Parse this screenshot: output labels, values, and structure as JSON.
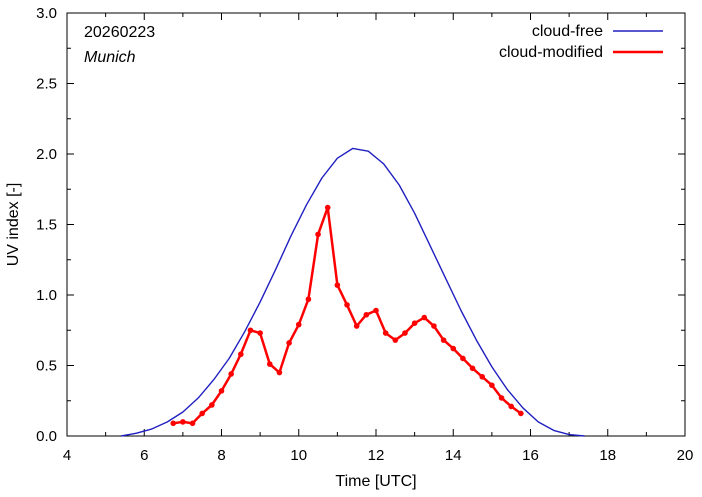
{
  "chart_data": {
    "type": "line",
    "xlabel": "Time  [UTC]",
    "ylabel": "UV index  [-]",
    "xlim": [
      4,
      20
    ],
    "ylim": [
      0,
      3.0
    ],
    "xticks": [
      4,
      6,
      8,
      10,
      12,
      14,
      16,
      18,
      20
    ],
    "yticks": [
      0.0,
      0.5,
      1.0,
      1.5,
      2.0,
      2.5,
      3.0
    ],
    "xtick_labels": [
      "4",
      "6",
      "8",
      "10",
      "12",
      "14",
      "16",
      "18",
      "20"
    ],
    "ytick_labels": [
      "0.0",
      "0.5",
      "1.0",
      "1.5",
      "2.0",
      "2.5",
      "3.0"
    ],
    "grid": false,
    "legend_position": "top-right",
    "annotations": {
      "date": "20260223",
      "location": "Munich"
    },
    "series": [
      {
        "name": "cloud-free",
        "color": "#2020c0",
        "marker": false,
        "x": [
          5.4,
          5.8,
          6.2,
          6.6,
          7.0,
          7.4,
          7.8,
          8.2,
          8.6,
          9.0,
          9.4,
          9.8,
          10.2,
          10.6,
          11.0,
          11.4,
          11.8,
          12.2,
          12.6,
          13.0,
          13.4,
          13.8,
          14.2,
          14.6,
          15.0,
          15.4,
          15.8,
          16.2,
          16.6,
          17.0,
          17.4
        ],
        "y": [
          0.0,
          0.02,
          0.05,
          0.1,
          0.17,
          0.27,
          0.4,
          0.55,
          0.74,
          0.95,
          1.18,
          1.42,
          1.64,
          1.83,
          1.97,
          2.04,
          2.02,
          1.93,
          1.78,
          1.58,
          1.35,
          1.12,
          0.89,
          0.68,
          0.49,
          0.33,
          0.2,
          0.1,
          0.04,
          0.01,
          0.0
        ]
      },
      {
        "name": "cloud-modified",
        "color": "#ff0000",
        "marker": true,
        "x": [
          6.75,
          7.0,
          7.25,
          7.5,
          7.75,
          8.0,
          8.25,
          8.5,
          8.75,
          9.0,
          9.25,
          9.5,
          9.75,
          10.0,
          10.25,
          10.5,
          10.75,
          11.0,
          11.25,
          11.5,
          11.75,
          12.0,
          12.25,
          12.5,
          12.75,
          13.0,
          13.25,
          13.5,
          13.75,
          14.0,
          14.25,
          14.5,
          14.75,
          15.0,
          15.25,
          15.5,
          15.75
        ],
        "y": [
          0.09,
          0.1,
          0.09,
          0.16,
          0.22,
          0.32,
          0.44,
          0.58,
          0.75,
          0.73,
          0.51,
          0.45,
          0.66,
          0.79,
          0.97,
          1.43,
          1.62,
          1.07,
          0.93,
          0.78,
          0.86,
          0.89,
          0.73,
          0.68,
          0.73,
          0.8,
          0.84,
          0.78,
          0.68,
          0.62,
          0.55,
          0.48,
          0.42,
          0.36,
          0.27,
          0.21,
          0.16
        ]
      }
    ]
  }
}
